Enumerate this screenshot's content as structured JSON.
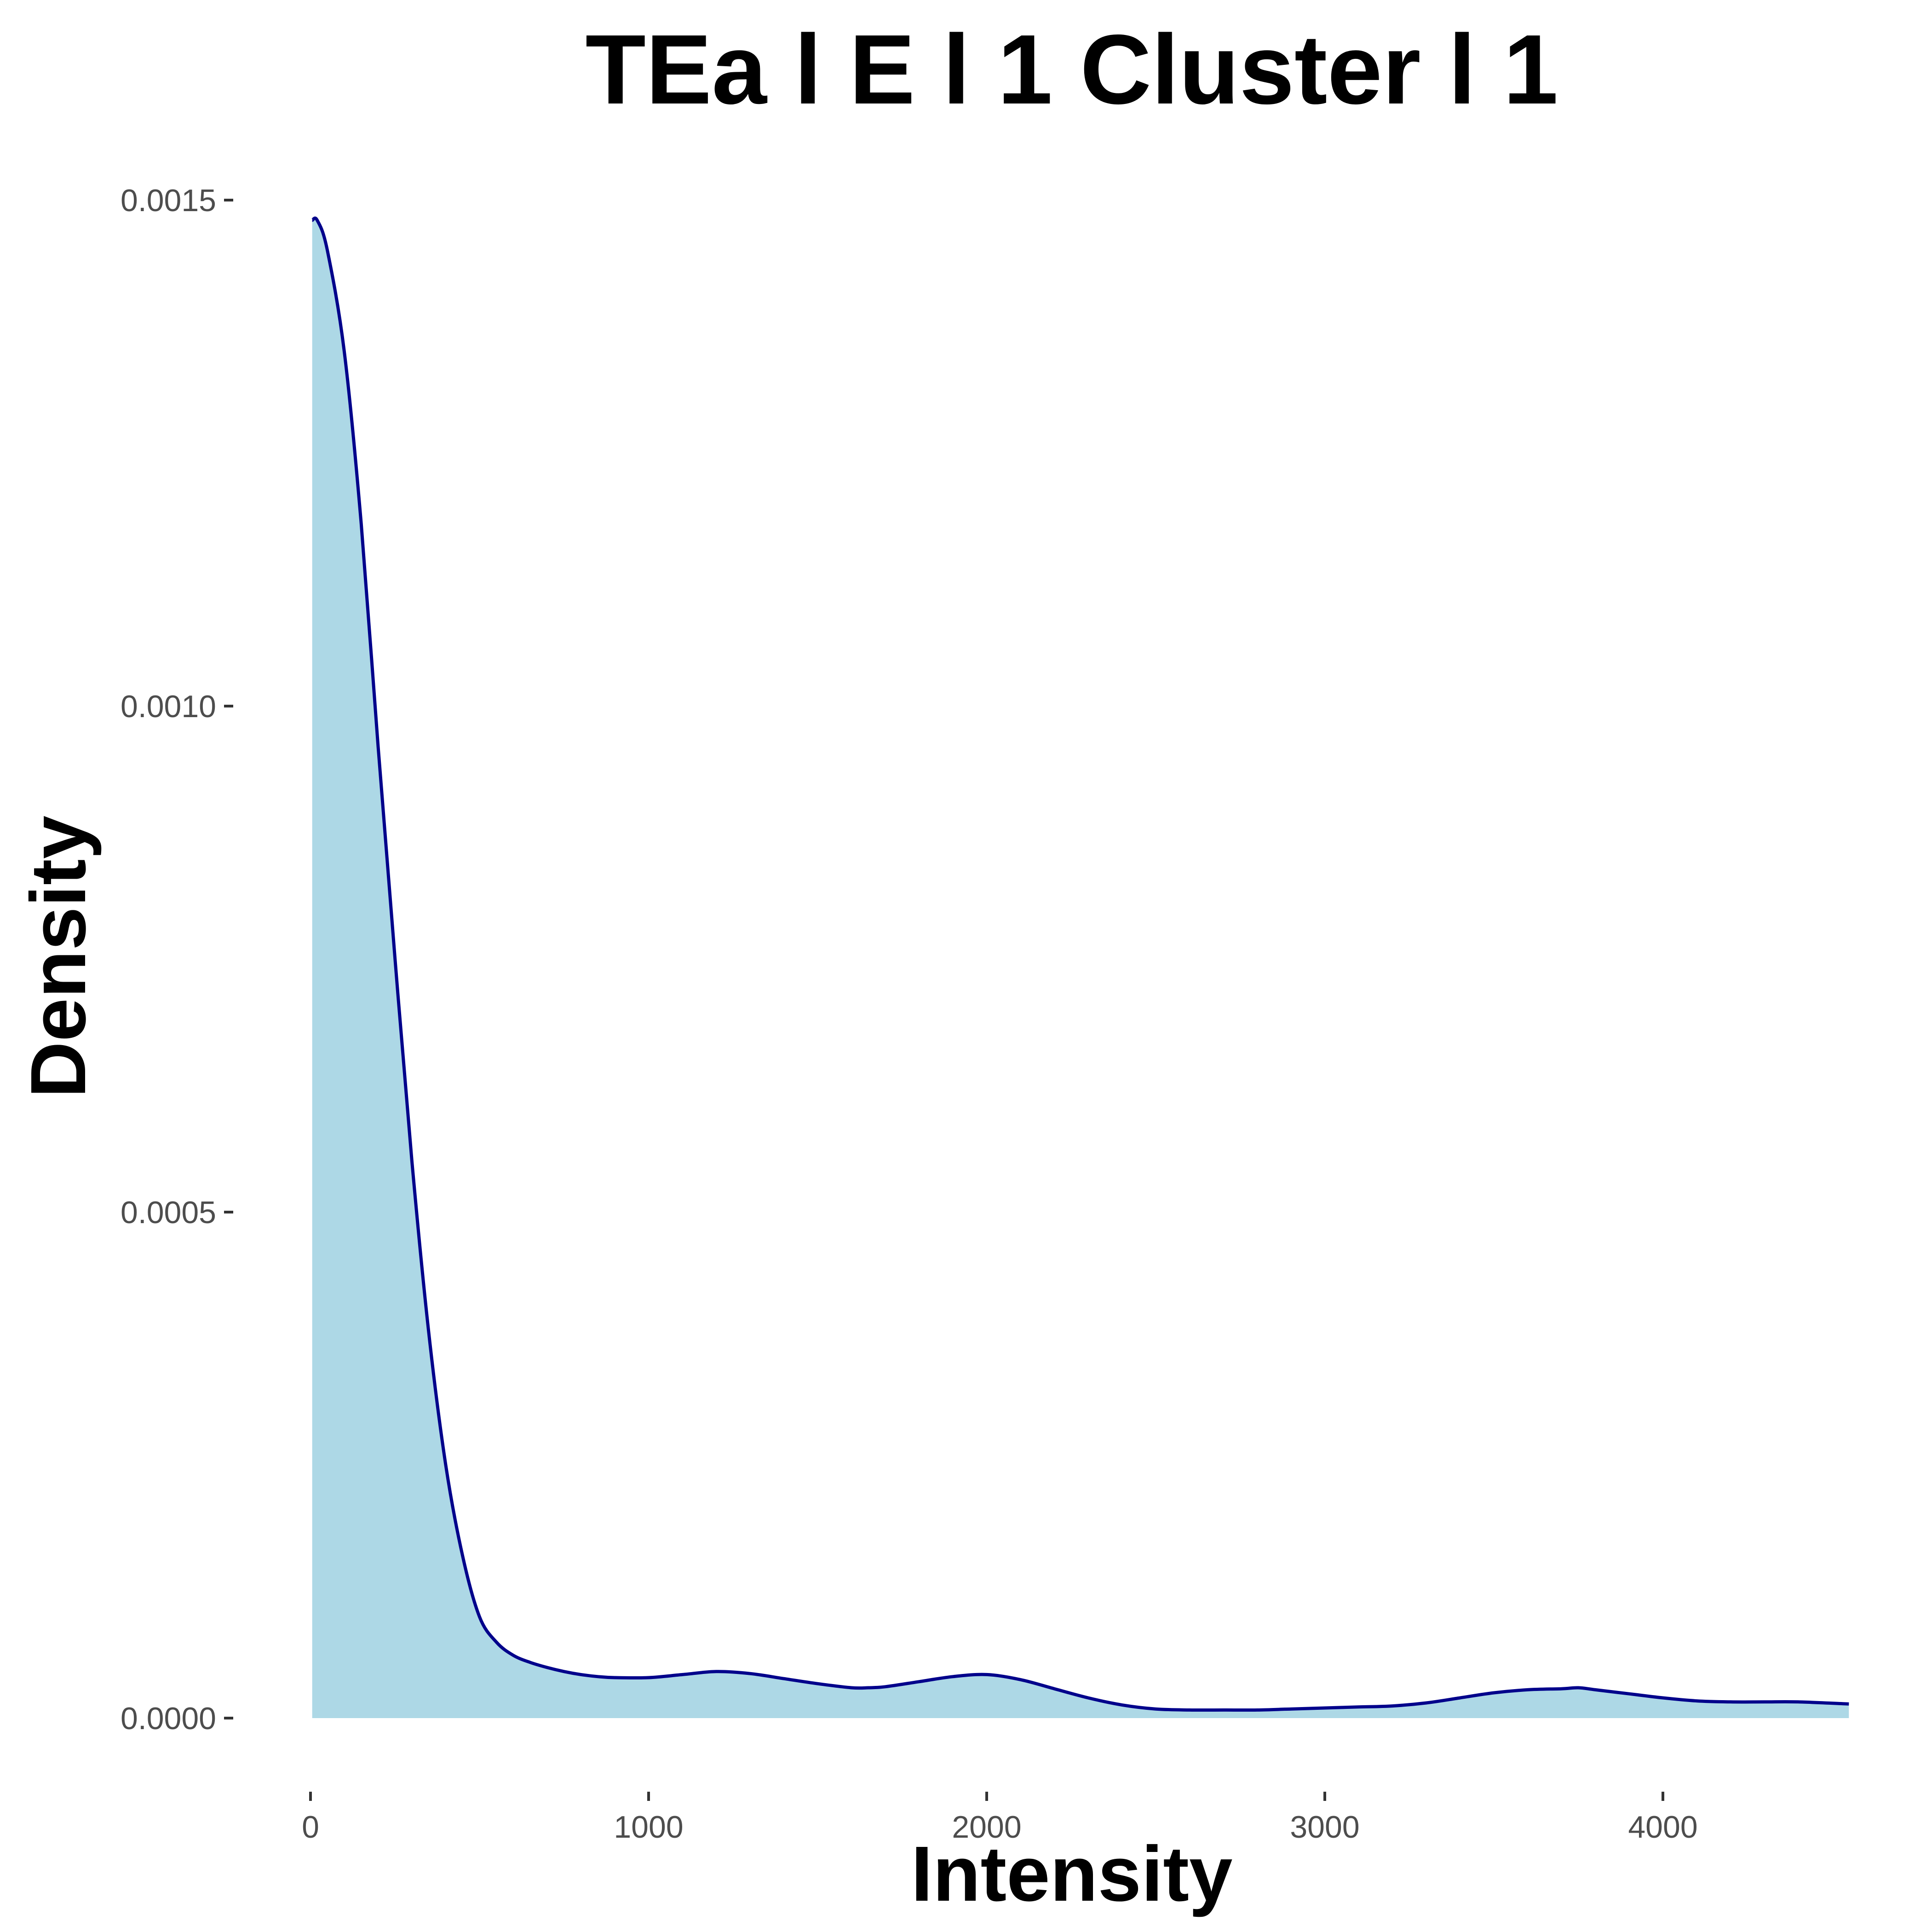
{
  "chart_data": {
    "type": "area",
    "title": "TEa l E l 1 Cluster l  1",
    "xlabel": "Intensity",
    "ylabel": "Density",
    "xlim": [
      0,
      4550
    ],
    "ylim": [
      0,
      0.0015
    ],
    "x_ticks": [
      0,
      1000,
      2000,
      3000,
      4000
    ],
    "x_tick_labels": [
      "0",
      "1000",
      "2000",
      "3000",
      "4000"
    ],
    "y_ticks": [
      0,
      0.0005,
      0.001,
      0.0015
    ],
    "y_tick_labels": [
      "0.0000",
      "0.0005",
      "0.0010",
      "0.0015"
    ],
    "grid": false,
    "legend": "none",
    "colors": {
      "fill": "#add8e6",
      "line": "#00008b"
    },
    "series": [
      {
        "x": [
          5,
          20,
          50,
          100,
          150,
          200,
          250,
          300,
          350,
          400,
          450,
          500,
          550,
          600,
          650,
          700,
          750,
          800,
          850,
          900,
          1000,
          1100,
          1200,
          1300,
          1400,
          1500,
          1600,
          1650,
          1700,
          1800,
          1900,
          2000,
          2100,
          2200,
          2300,
          2400,
          2500,
          2600,
          2700,
          2800,
          2900,
          3000,
          3100,
          3200,
          3300,
          3400,
          3500,
          3600,
          3700,
          3750,
          3800,
          3900,
          4000,
          4100,
          4200,
          4300,
          4400,
          4550
        ],
        "y": [
          0.00148,
          0.00148,
          0.00145,
          0.00135,
          0.00118,
          0.00096,
          0.00075,
          0.00055,
          0.00038,
          0.00025,
          0.00016,
          0.0001,
          7.5e-05,
          6.2e-05,
          5.5e-05,
          5e-05,
          4.6e-05,
          4.3e-05,
          4.1e-05,
          4e-05,
          4e-05,
          4.3e-05,
          4.6e-05,
          4.4e-05,
          3.9e-05,
          3.4e-05,
          3e-05,
          3e-05,
          3.1e-05,
          3.6e-05,
          4.1e-05,
          4.3e-05,
          3.8e-05,
          2.9e-05,
          2e-05,
          1.3e-05,
          9e-06,
          8e-06,
          8e-06,
          8e-06,
          9e-06,
          1e-05,
          1.1e-05,
          1.2e-05,
          1.5e-05,
          2e-05,
          2.5e-05,
          2.8e-05,
          2.9e-05,
          3e-05,
          2.8e-05,
          2.4e-05,
          2e-05,
          1.7e-05,
          1.6e-05,
          1.6e-05,
          1.6e-05,
          1.4e-05
        ]
      }
    ]
  }
}
